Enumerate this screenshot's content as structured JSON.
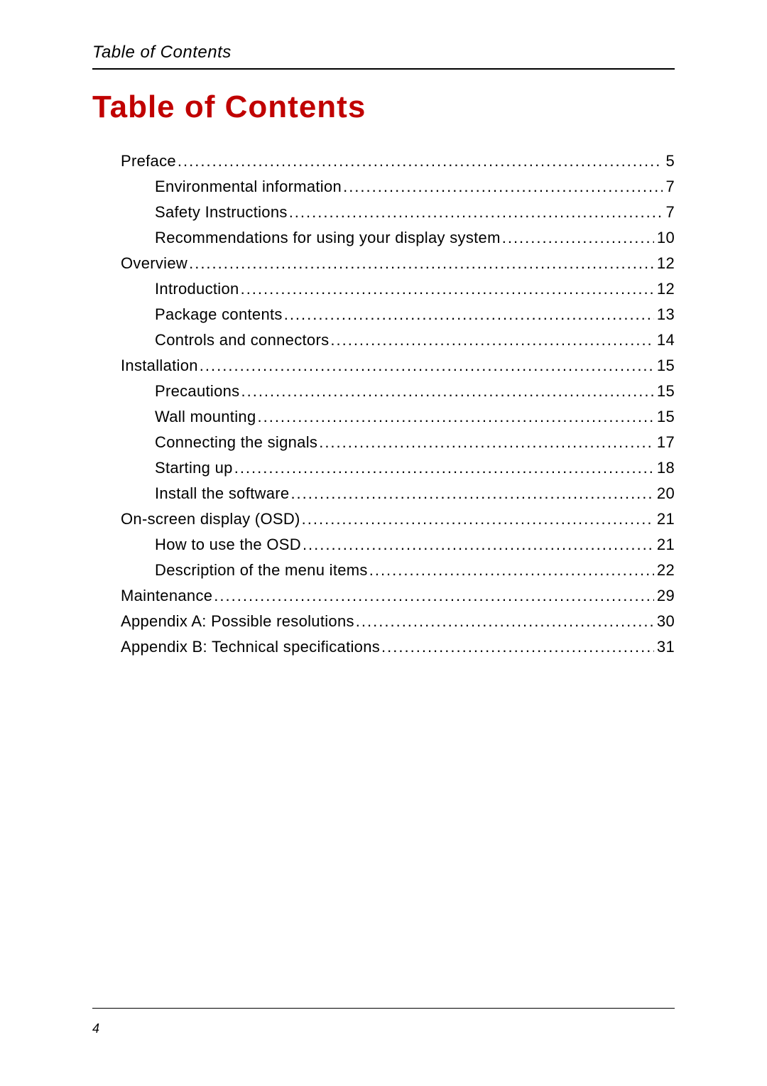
{
  "header": {
    "running_title": "Table of Contents"
  },
  "title": "Table of Contents",
  "title_color": "#c00000",
  "text_color": "#000000",
  "background_color": "#ffffff",
  "font_family": "Verdana, Geneva, sans-serif",
  "title_fontsize_pt": 33,
  "body_fontsize_pt": 16,
  "toc": [
    {
      "label": "Preface",
      "page": "5",
      "level": 1
    },
    {
      "label": "Environmental information",
      "page": "7",
      "level": 2
    },
    {
      "label": "Safety Instructions",
      "page": "7",
      "level": 2
    },
    {
      "label": "Recommendations for using your display system",
      "page": "10",
      "level": 2
    },
    {
      "label": "Overview",
      "page": "12",
      "level": 1
    },
    {
      "label": "Introduction",
      "page": "12",
      "level": 2
    },
    {
      "label": "Package contents",
      "page": "13",
      "level": 2
    },
    {
      "label": "Controls and connectors",
      "page": "14",
      "level": 2
    },
    {
      "label": "Installation",
      "page": "15",
      "level": 1
    },
    {
      "label": "Precautions",
      "page": "15",
      "level": 2
    },
    {
      "label": "Wall mounting",
      "page": "15",
      "level": 2
    },
    {
      "label": "Connecting the signals",
      "page": "17",
      "level": 2
    },
    {
      "label": "Starting up",
      "page": "18",
      "level": 2
    },
    {
      "label": "Install the software",
      "page": "20",
      "level": 2
    },
    {
      "label": "On-screen display (OSD)",
      "page": "21",
      "level": 1
    },
    {
      "label": "How to use the OSD",
      "page": "21",
      "level": 2
    },
    {
      "label": "Description of the menu items",
      "page": "22",
      "level": 2
    },
    {
      "label": "Maintenance",
      "page": "29",
      "level": 1
    },
    {
      "label": "Appendix A: Possible resolutions",
      "page": "30",
      "level": 1
    },
    {
      "label": "Appendix B: Technical specifications",
      "page": "31",
      "level": 1
    }
  ],
  "footer": {
    "page_number": "4"
  }
}
